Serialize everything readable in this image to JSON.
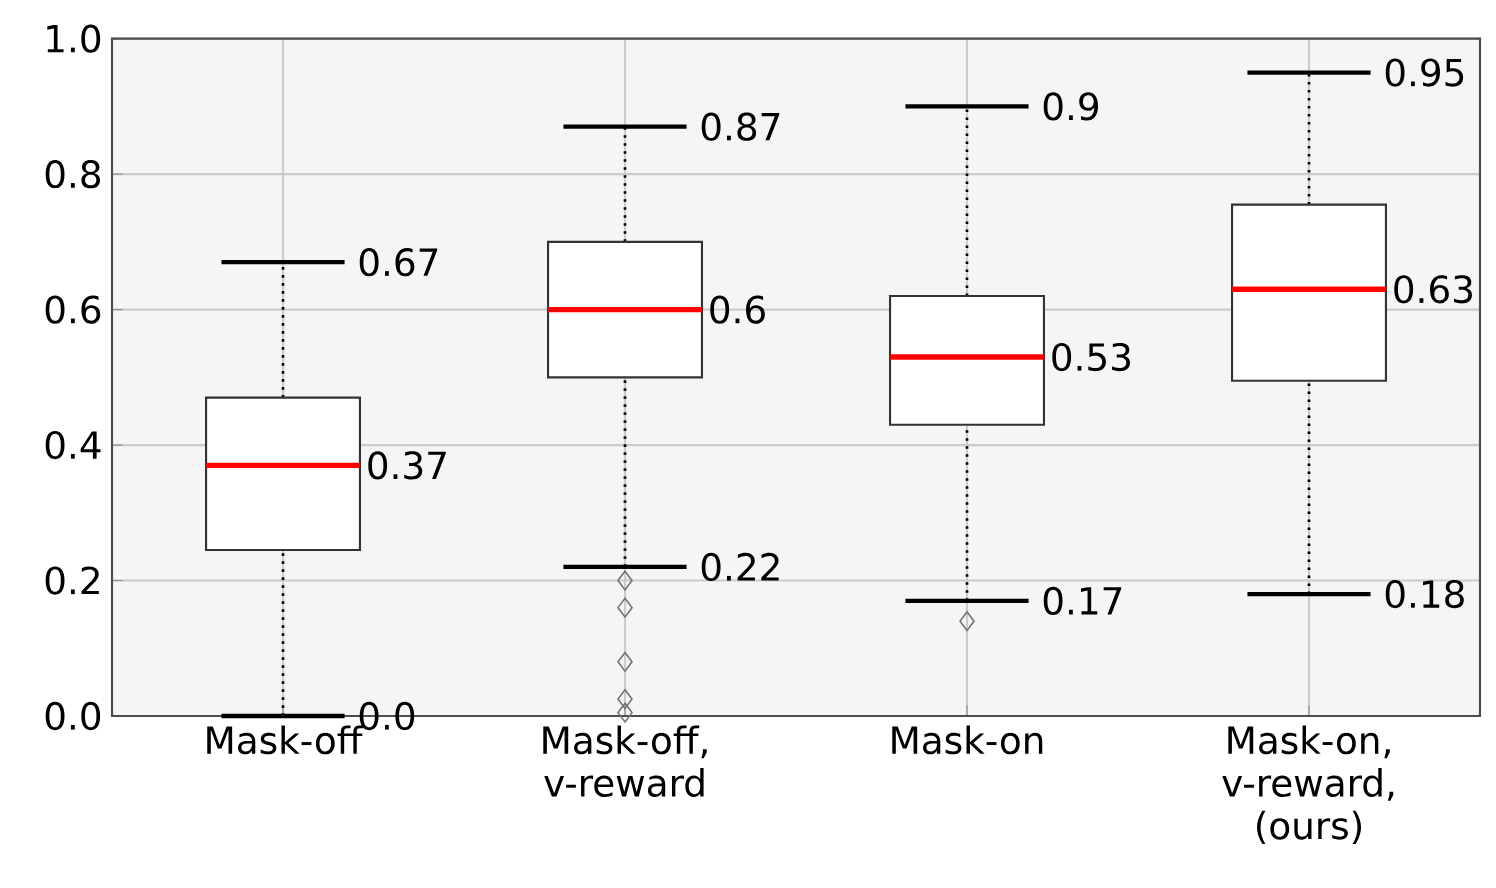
{
  "chart_data": {
    "type": "box",
    "categories": [
      "Mask-off",
      "Mask-off, v-reward",
      "Mask-on",
      "Mask-on, v-reward, (ours)"
    ],
    "boxes": [
      {
        "low": 0.0,
        "q1": 0.245,
        "median": 0.37,
        "q3": 0.47,
        "high": 0.67
      },
      {
        "low": 0.22,
        "q1": 0.5,
        "median": 0.6,
        "q3": 0.7,
        "high": 0.87,
        "outliers": [
          0.2,
          0.16,
          0.08,
          0.025,
          0.005
        ]
      },
      {
        "low": 0.17,
        "q1": 0.43,
        "median": 0.53,
        "q3": 0.62,
        "high": 0.9,
        "outliers": [
          0.14
        ]
      },
      {
        "low": 0.18,
        "q1": 0.495,
        "median": 0.63,
        "q3": 0.755,
        "high": 0.95
      }
    ],
    "ylim": [
      0,
      1
    ],
    "yticks": [
      {
        "value": 0,
        "label": "0.0"
      },
      {
        "value": 0.2,
        "label": "0.2"
      },
      {
        "value": 0.4,
        "label": "0.4"
      },
      {
        "value": 0.6,
        "label": "0.6"
      },
      {
        "value": 0.8,
        "label": "0.8"
      },
      {
        "value": 1,
        "label": "1.0"
      }
    ],
    "grid": true,
    "annotations": [
      "0.67",
      "0.37",
      "0.0",
      "0.87",
      "0.6",
      "0.22",
      "0.9",
      "0.53",
      "0.17",
      "0.95",
      "0.63",
      "0.18"
    ]
  }
}
